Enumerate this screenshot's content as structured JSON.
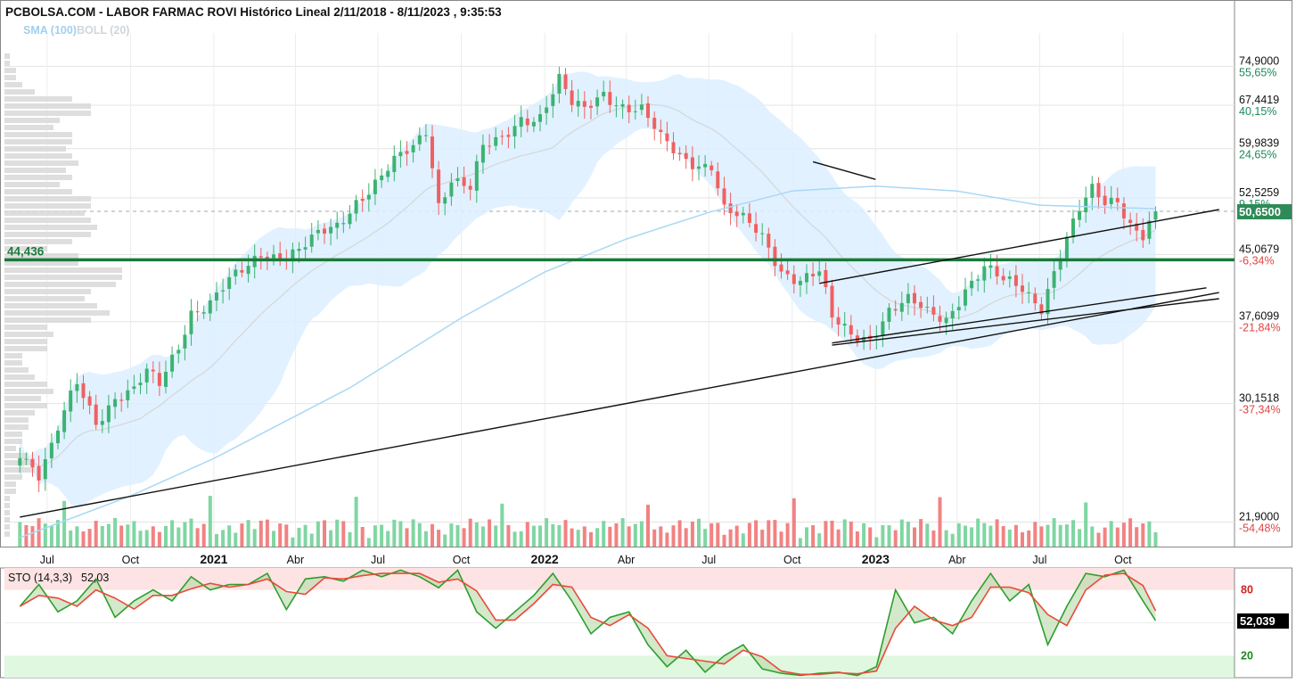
{
  "title": "PCBOLSA.COM - LABOR FARMAC ROVI Histórico Lineal 2/11/2018 - 8/11/2023 , 9:35:53",
  "legend": {
    "sma": "SMA (100)",
    "boll": "BOLL (20)"
  },
  "stochastic": {
    "label": "STO (14,3,3)",
    "value": "52,03",
    "marker": "52,039",
    "levels": [
      "80",
      "20"
    ]
  },
  "colors": {
    "up": "#3cb371",
    "down": "#f06060",
    "sma": "#a9d8f5",
    "band": "#dcefff",
    "support": "#1a7a3a",
    "marker": "#2e8b57"
  },
  "chart_data": [
    {
      "type": "candlestick",
      "title": "PCBOLSA.COM - LABOR FARMAC ROVI Histórico Lineal 2/11/2018 - 8/11/2023 , 9:35:53",
      "y_scale": "log",
      "ylim": [
        20.5,
        80
      ],
      "x_tick_labels": [
        "Jul",
        "Oct",
        "2021",
        "Abr",
        "Jul",
        "Oct",
        "2022",
        "Abr",
        "Jul",
        "Oct",
        "2023",
        "Abr",
        "Jul",
        "Oct"
      ],
      "y_ticks": [
        {
          "price": "74,9000",
          "pct": "55,65%"
        },
        {
          "price": "67,4419",
          "pct": "40,15%"
        },
        {
          "price": "59,9839",
          "pct": "24,65%"
        },
        {
          "price": "52,5259",
          "pct": "9,15%"
        },
        {
          "price": "45,0679",
          "pct": "-6,34%"
        },
        {
          "price": "37,6099",
          "pct": "-21,84%"
        },
        {
          "price": "30,1518",
          "pct": "-37,34%"
        },
        {
          "price": "21,9000",
          "pct": "-54,48%"
        }
      ],
      "support_level": {
        "label": "44,436",
        "value": 44.436
      },
      "last_price": "50,6500",
      "close_path": [
        [
          "2020-06-01",
          26.8
        ],
        [
          "2020-06-22",
          24.8
        ],
        [
          "2020-07-06",
          26.5
        ],
        [
          "2020-08-03",
          31.8
        ],
        [
          "2020-08-24",
          29.0
        ],
        [
          "2020-09-14",
          30.8
        ],
        [
          "2020-10-05",
          31.0
        ],
        [
          "2020-10-19",
          32.5
        ],
        [
          "2020-11-02",
          31.6
        ],
        [
          "2020-11-23",
          35.5
        ],
        [
          "2020-12-07",
          39.0
        ],
        [
          "2020-12-28",
          39.5
        ],
        [
          "2021-01-18",
          41.5
        ],
        [
          "2021-02-08",
          43.5
        ],
        [
          "2021-02-22",
          45.5
        ],
        [
          "2021-03-15",
          45.3
        ],
        [
          "2021-04-05",
          45.5
        ],
        [
          "2021-04-26",
          47.0
        ],
        [
          "2021-05-17",
          48.5
        ],
        [
          "2021-06-07",
          52.5
        ],
        [
          "2021-06-28",
          55.0
        ],
        [
          "2021-07-19",
          57.5
        ],
        [
          "2021-08-09",
          59.5
        ],
        [
          "2021-08-23",
          63.0
        ],
        [
          "2021-09-06",
          52.0
        ],
        [
          "2021-09-20",
          56.0
        ],
        [
          "2021-10-11",
          54.0
        ],
        [
          "2021-10-25",
          59.5
        ],
        [
          "2021-11-15",
          61.0
        ],
        [
          "2021-12-06",
          65.5
        ],
        [
          "2021-12-27",
          66.0
        ],
        [
          "2022-01-17",
          72.0
        ],
        [
          "2022-01-31",
          67.0
        ],
        [
          "2022-02-14",
          66.0
        ],
        [
          "2022-03-07",
          70.0
        ],
        [
          "2022-03-28",
          68.0
        ],
        [
          "2022-04-18",
          66.5
        ],
        [
          "2022-05-09",
          61.0
        ],
        [
          "2022-05-30",
          58.5
        ],
        [
          "2022-06-20",
          58.0
        ],
        [
          "2022-07-04",
          58.0
        ],
        [
          "2022-07-18",
          51.0
        ],
        [
          "2022-08-08",
          49.0
        ],
        [
          "2022-08-29",
          47.0
        ],
        [
          "2022-09-19",
          43.5
        ],
        [
          "2022-10-10",
          42.5
        ],
        [
          "2022-10-31",
          42.8
        ],
        [
          "2022-11-14",
          37.5
        ],
        [
          "2022-12-05",
          36.2
        ],
        [
          "2022-12-26",
          36.3
        ],
        [
          "2023-01-16",
          39.0
        ],
        [
          "2023-02-06",
          39.5
        ],
        [
          "2023-02-27",
          38.2
        ],
        [
          "2023-03-20",
          38.0
        ],
        [
          "2023-04-10",
          41.5
        ],
        [
          "2023-05-01",
          43.5
        ],
        [
          "2023-05-22",
          41.5
        ],
        [
          "2023-06-12",
          41.0
        ],
        [
          "2023-07-03",
          39.5
        ],
        [
          "2023-07-24",
          45.5
        ],
        [
          "2023-08-14",
          50.5
        ],
        [
          "2023-08-28",
          53.0
        ],
        [
          "2023-09-11",
          51.5
        ],
        [
          "2023-09-25",
          52.5
        ],
        [
          "2023-10-09",
          49.5
        ],
        [
          "2023-10-23",
          48.0
        ],
        [
          "2023-11-06",
          50.65
        ]
      ],
      "sma_path": [
        [
          "2020-06-01",
          21.0
        ],
        [
          "2020-10-01",
          23.5
        ],
        [
          "2021-01-01",
          26.0
        ],
        [
          "2021-06-01",
          31.5
        ],
        [
          "2021-10-01",
          38.0
        ],
        [
          "2022-01-01",
          43.0
        ],
        [
          "2022-04-01",
          47.0
        ],
        [
          "2022-07-01",
          50.5
        ],
        [
          "2022-10-01",
          53.5
        ],
        [
          "2023-01-01",
          54.2
        ],
        [
          "2023-04-01",
          53.5
        ],
        [
          "2023-07-01",
          51.5
        ],
        [
          "2023-11-06",
          51.0
        ]
      ],
      "trend_lines": [
        {
          "from": [
            "2020-06-01",
            22.2
          ],
          "to": [
            "2023-11-06",
            39.4
          ],
          "extend_to": "2024-01-15"
        },
        {
          "from": [
            "2022-11-14",
            35.3
          ],
          "to": [
            "2023-11-06",
            39.2
          ],
          "extend_to": "2024-01-15"
        },
        {
          "from": [
            "2022-11-14",
            35.5
          ],
          "to": [
            "2024-01-01",
            41.2
          ]
        },
        {
          "from": [
            "2022-10-31",
            41.7
          ],
          "to": [
            "2024-01-15",
            50.9
          ]
        },
        {
          "from": [
            "2022-10-24",
            57.9
          ],
          "to": [
            "2023-01-01",
            55.2
          ]
        }
      ]
    },
    {
      "type": "line",
      "title": "STO (14,3,3)",
      "ylim": [
        0,
        100
      ],
      "levels": [
        80,
        20
      ],
      "series": [
        {
          "name": "STO (14,3,3)",
          "points": [
            [
              "2020-06-01",
              65
            ],
            [
              "2020-06-22",
              85
            ],
            [
              "2020-07-13",
              60
            ],
            [
              "2020-08-03",
              70
            ],
            [
              "2020-08-24",
              90
            ],
            [
              "2020-09-14",
              55
            ],
            [
              "2020-10-05",
              70
            ],
            [
              "2020-10-26",
              80
            ],
            [
              "2020-11-16",
              70
            ],
            [
              "2020-12-07",
              92
            ],
            [
              "2020-12-28",
              80
            ],
            [
              "2021-01-18",
              85
            ],
            [
              "2021-02-08",
              85
            ],
            [
              "2021-03-01",
              95
            ],
            [
              "2021-03-22",
              62
            ],
            [
              "2021-04-12",
              90
            ],
            [
              "2021-05-03",
              92
            ],
            [
              "2021-05-24",
              88
            ],
            [
              "2021-06-14",
              98
            ],
            [
              "2021-07-05",
              92
            ],
            [
              "2021-07-26",
              98
            ],
            [
              "2021-08-16",
              92
            ],
            [
              "2021-09-06",
              82
            ],
            [
              "2021-09-27",
              98
            ],
            [
              "2021-10-18",
              60
            ],
            [
              "2021-11-08",
              45
            ],
            [
              "2021-11-29",
              60
            ],
            [
              "2021-12-20",
              75
            ],
            [
              "2022-01-10",
              95
            ],
            [
              "2022-01-31",
              70
            ],
            [
              "2022-02-21",
              40
            ],
            [
              "2022-03-14",
              55
            ],
            [
              "2022-04-04",
              60
            ],
            [
              "2022-04-25",
              30
            ],
            [
              "2022-05-16",
              10
            ],
            [
              "2022-06-06",
              25
            ],
            [
              "2022-06-27",
              5
            ],
            [
              "2022-07-18",
              20
            ],
            [
              "2022-08-08",
              30
            ],
            [
              "2022-08-29",
              8
            ],
            [
              "2022-09-19",
              4
            ],
            [
              "2022-10-10",
              2
            ],
            [
              "2022-10-31",
              4
            ],
            [
              "2022-11-21",
              5
            ],
            [
              "2022-12-12",
              2
            ],
            [
              "2023-01-02",
              10
            ],
            [
              "2023-01-23",
              80
            ],
            [
              "2023-02-13",
              50
            ],
            [
              "2023-03-06",
              55
            ],
            [
              "2023-03-27",
              40
            ],
            [
              "2023-04-17",
              70
            ],
            [
              "2023-05-08",
              95
            ],
            [
              "2023-05-29",
              70
            ],
            [
              "2023-06-19",
              85
            ],
            [
              "2023-07-10",
              30
            ],
            [
              "2023-07-31",
              65
            ],
            [
              "2023-08-21",
              95
            ],
            [
              "2023-09-11",
              92
            ],
            [
              "2023-10-02",
              98
            ],
            [
              "2023-10-23",
              70
            ],
            [
              "2023-11-06",
              52.03
            ]
          ]
        }
      ]
    }
  ]
}
